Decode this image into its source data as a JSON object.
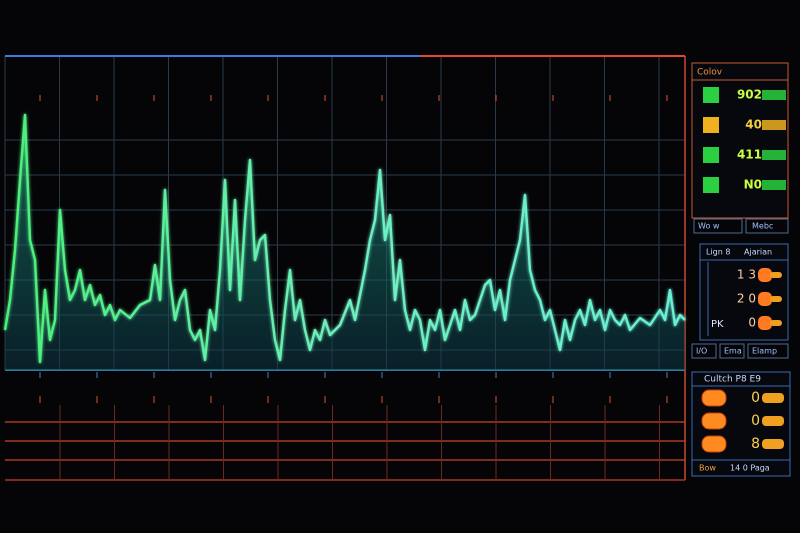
{
  "panel1": {
    "title": "Colov",
    "readouts": [
      "902",
      "40",
      "411",
      "N0"
    ]
  },
  "tabs1": [
    "Wo w",
    "Mebc"
  ],
  "panel2": {
    "title": [
      "Lign 8",
      "Ajarian"
    ],
    "rows": [
      "1 3",
      "2 0",
      "0"
    ],
    "side": "PK"
  },
  "tabs2": [
    "I/O",
    "Ema",
    "Elamp"
  ],
  "panel3": {
    "title": "Cultch P8 E9",
    "rows": [
      "0",
      "0",
      "8"
    ],
    "footer": [
      "Bow",
      "14 0 Paga"
    ]
  }
}
